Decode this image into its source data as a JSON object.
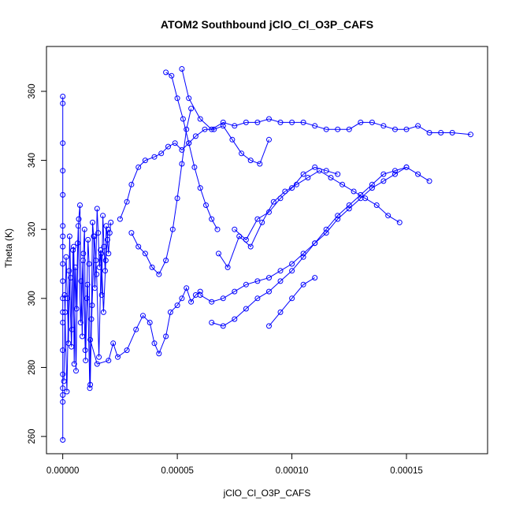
{
  "chart_data": {
    "type": "line",
    "title": "ATOM2 Southbound jClO_Cl_O3P_CAFS",
    "xlabel": "jClO_Cl_O3P_CAFS",
    "ylabel": "Theta (K)",
    "xlim": [
      -7.1e-06,
      0.0001854
    ],
    "ylim": [
      255.0,
      373.0
    ],
    "x_ticks": [
      0,
      5e-05,
      0.0001,
      0.00015
    ],
    "x_tick_labels": [
      "0.00000",
      "0.00005",
      "0.00010",
      "0.00015"
    ],
    "y_ticks": [
      260,
      280,
      300,
      320,
      340,
      360
    ],
    "y_tick_labels": [
      "260",
      "280",
      "300",
      "320",
      "340",
      "360"
    ],
    "grid": false,
    "legend": "none",
    "marker": "open-circle",
    "color": "#0000ff",
    "series": [
      {
        "x": [
          0,
          0,
          0,
          0,
          0,
          0,
          0,
          0,
          0,
          0,
          0,
          0,
          0,
          0,
          0,
          0,
          0,
          0,
          0
        ],
        "y": [
          259,
          270,
          272,
          274,
          278,
          285,
          293,
          296,
          300,
          305,
          310,
          315,
          318,
          321,
          330,
          337,
          345,
          356.5,
          358.5
        ]
      },
      {
        "x": [
          5e-07,
          1e-06,
          1.5e-06,
          2e-06,
          2.5e-06,
          3e-06,
          3.5e-06,
          4e-06,
          4.5e-06,
          5e-06,
          5.5e-06,
          6e-06,
          6.5e-06,
          7e-06,
          7.5e-06,
          8e-06,
          8.5e-06,
          9e-06,
          9.5e-06,
          1e-05,
          1.05e-05,
          1.1e-05,
          1.15e-05,
          1.2e-05,
          1.25e-05,
          1.3e-05,
          1.35e-05,
          1.4e-05,
          1.45e-05,
          1.5e-05,
          1.55e-05,
          1.6e-05,
          1.65e-05,
          1.7e-05,
          1.75e-05,
          1.8e-05,
          1.85e-05,
          1.9e-05,
          1.95e-05,
          2e-05,
          2.05e-05,
          2.1e-05
        ],
        "y": [
          276,
          296,
          312,
          300,
          287,
          318,
          306,
          291,
          314,
          281,
          309,
          297,
          316,
          323,
          327,
          305,
          289,
          313,
          320,
          282,
          300,
          317,
          310,
          275,
          294,
          322,
          318,
          303,
          311,
          326,
          319,
          309,
          314,
          301,
          324,
          315,
          308,
          321,
          317,
          313,
          319,
          322
        ]
      },
      {
        "x": [
          8e-07,
          1.8e-06,
          2.8e-06,
          3.8e-06,
          4.8e-06,
          5.8e-06,
          6.8e-06,
          7.8e-06,
          8.8e-06,
          9.8e-06,
          1.08e-05,
          1.18e-05,
          1.28e-05,
          1.38e-05,
          1.48e-05,
          1.58e-05,
          1.68e-05,
          1.78e-05,
          1.88e-05,
          1.98e-05
        ],
        "y": [
          301,
          273,
          308,
          286,
          315,
          279,
          321,
          293,
          311,
          285,
          304,
          274,
          298,
          318,
          307,
          283,
          313,
          296,
          311,
          320
        ]
      },
      {
        "x": [
          1.2e-05,
          1.5e-05,
          2e-05,
          2.2e-05,
          2.4e-05,
          2.8e-05,
          3.2e-05,
          3.5e-05,
          3.8e-05,
          4e-05,
          4.2e-05,
          4.5e-05,
          4.7e-05,
          5e-05,
          5.2e-05,
          5.4e-05,
          5.6e-05,
          5.8e-05,
          6e-05
        ],
        "y": [
          288,
          281,
          282,
          287,
          283,
          285,
          291,
          295,
          293,
          287,
          284,
          289,
          296,
          298,
          300,
          303,
          299,
          301,
          302
        ]
      },
      {
        "x": [
          2.5e-05,
          2.8e-05,
          3e-05,
          3.3e-05,
          3.6e-05,
          4e-05,
          4.3e-05,
          4.6e-05,
          4.9e-05,
          5.2e-05,
          5.5e-05,
          5.8e-05,
          6.2e-05,
          6.6e-05,
          7e-05,
          7.4e-05,
          7.8e-05,
          8.2e-05,
          8.6e-05,
          9e-05
        ],
        "y": [
          323,
          328,
          333,
          338,
          340,
          341,
          342,
          344,
          345,
          343,
          345,
          347,
          349,
          349,
          350,
          346,
          342,
          340,
          339,
          346
        ]
      },
      {
        "x": [
          3e-05,
          3.3e-05,
          3.6e-05,
          3.9e-05,
          4.2e-05,
          4.5e-05,
          4.8e-05,
          5e-05,
          5.2e-05,
          5.4e-05,
          5.6e-05
        ],
        "y": [
          319,
          315,
          313,
          309,
          307,
          311,
          320,
          329,
          339,
          349,
          355
        ]
      },
      {
        "x": [
          4.5e-05,
          4.75e-05,
          5e-05,
          5.25e-05,
          5.5e-05,
          5.75e-05,
          6e-05,
          6.25e-05,
          6.5e-05,
          6.75e-05
        ],
        "y": [
          365.5,
          364.5,
          358,
          352,
          345,
          338,
          332,
          327,
          323,
          320
        ]
      },
      {
        "x": [
          5.2e-05,
          5.5e-05,
          6e-05,
          6.5e-05,
          7e-05,
          7.5e-05,
          8e-05,
          8.5e-05,
          9e-05,
          9.5e-05,
          0.0001,
          0.000105,
          0.00011,
          0.000115,
          0.00012,
          0.000125,
          0.00013,
          0.000135,
          0.00014,
          0.000145,
          0.00015,
          0.000155,
          0.00016,
          0.000165,
          0.00017,
          0.000178
        ],
        "y": [
          366.5,
          358,
          352,
          349,
          351,
          350,
          351,
          351,
          352,
          351,
          351,
          351,
          350,
          349,
          349,
          349,
          351,
          351,
          350,
          349,
          349,
          350,
          348,
          348,
          348,
          347.5
        ]
      },
      {
        "x": [
          6e-05,
          6.5e-05,
          7e-05,
          7.5e-05,
          8e-05,
          8.5e-05,
          9e-05,
          9.5e-05,
          0.0001,
          0.000105,
          0.00011,
          0.000115,
          0.00012,
          0.000125,
          0.00013,
          0.000135,
          0.00014,
          0.000145,
          0.00015,
          0.000155,
          0.00016
        ],
        "y": [
          301,
          299,
          300,
          302,
          304,
          305,
          306,
          308,
          310,
          313,
          316,
          320,
          324,
          327,
          330,
          333,
          336,
          337,
          338,
          336,
          334
        ]
      },
      {
        "x": [
          6.5e-05,
          7e-05,
          7.5e-05,
          8e-05,
          8.5e-05,
          9e-05,
          9.5e-05,
          0.0001,
          0.000105,
          0.00011,
          0.000115,
          0.00012,
          0.000125,
          0.00013,
          0.000135,
          0.00014,
          0.000145,
          0.00015
        ],
        "y": [
          293,
          292,
          294,
          297,
          300,
          302,
          305,
          308,
          312,
          316,
          319,
          323,
          326,
          329,
          332,
          334,
          336,
          338
        ]
      },
      {
        "x": [
          6.8e-05,
          7.2e-05,
          7.7e-05,
          8.2e-05,
          8.7e-05,
          9.2e-05,
          9.7e-05,
          0.000102,
          0.000107,
          0.000112,
          0.000117,
          0.000122,
          0.000127,
          0.000132,
          0.000137,
          0.000142,
          0.000147
        ],
        "y": [
          313,
          309,
          318,
          315,
          322,
          328,
          331,
          333,
          335,
          337,
          335,
          333,
          331,
          329,
          327,
          324,
          322
        ]
      },
      {
        "x": [
          7.5e-05,
          8e-05,
          8.5e-05,
          9e-05,
          9.5e-05,
          0.0001,
          0.000105,
          0.00011,
          0.000115,
          0.00012
        ],
        "y": [
          320,
          317,
          323,
          325,
          329,
          332,
          336,
          338,
          337,
          336
        ]
      },
      {
        "x": [
          9e-05,
          9.5e-05,
          0.0001,
          0.000105,
          0.00011
        ],
        "y": [
          292,
          296,
          300,
          304,
          306
        ]
      }
    ]
  }
}
